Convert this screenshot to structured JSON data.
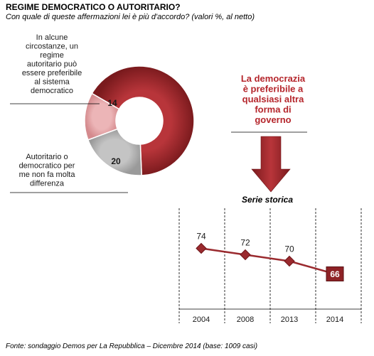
{
  "header": {
    "title": "REGIME DEMOCRATICO O AUTORITARIO?",
    "subtitle": "Con quale di queste affermazioni lei è più d'accordo? (valori %, al netto)"
  },
  "footer": {
    "source": "Fonte: sondaggio Demos per La Repubblica – Dicembre 2014 (base: 1009 casi)"
  },
  "colors": {
    "democracy": "#a8282c",
    "democracy_dark": "#6e1518",
    "authoritarian": "#e3a1a3",
    "indifferent": "#b5b5b5",
    "line": "#9a2a2e"
  },
  "chart_data": [
    {
      "type": "pie",
      "style": "donut",
      "slices": [
        {
          "key": "democracy",
          "label_lines": [
            "La democrazia",
            "è preferibile a",
            "qualsiasi altra",
            "forma di",
            "governo"
          ],
          "value": 66,
          "value_text": "66"
        },
        {
          "key": "indifferent",
          "label_lines": [
            "Autoritario o",
            "democratico per",
            "me non fa molta",
            "differenza"
          ],
          "value": 20,
          "value_text": "20"
        },
        {
          "key": "authoritarian",
          "label_lines": [
            "In alcune",
            "circostanze, un",
            "regime",
            "autoritario può",
            "essere preferibile",
            "al sistema",
            "democratico"
          ],
          "value": 14,
          "value_text": "14"
        }
      ]
    },
    {
      "type": "line",
      "title": "Serie storica",
      "categories": [
        "2004",
        "2008",
        "2013",
        "2014"
      ],
      "values": [
        74,
        72,
        70,
        66
      ],
      "value_labels": [
        "74",
        "72",
        "70",
        "66"
      ],
      "ylim": [
        55,
        85
      ],
      "grid": "vertical dashed separators"
    }
  ]
}
